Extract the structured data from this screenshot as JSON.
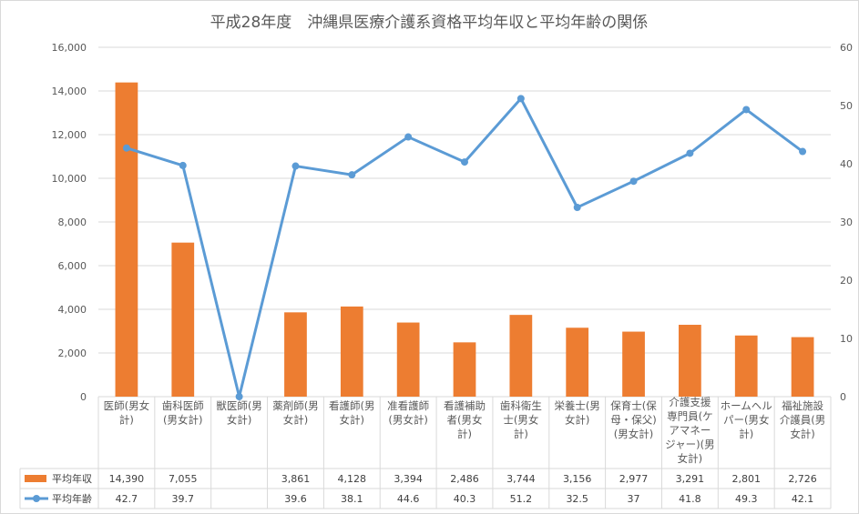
{
  "chart_data": {
    "type": "bar+line",
    "title": "平成28年度　沖縄県医療介護系資格平均年収と平均年齢の関係",
    "categories": [
      "医師(男女計)",
      "歯科医師(男女計)",
      "獣医師(男女計)",
      "薬剤師(男女計)",
      "看護師(男女計)",
      "准看護師(男女計)",
      "看護補助者(男女計)",
      "歯科衛生士(男女計)",
      "栄養士(男女計)",
      "保育士(保母・保父)(男女計)",
      "介護支援専門員(ケアマネージャー)(男女計)",
      "ホームヘルパー(男女計)",
      "福祉施設介護員(男女計)"
    ],
    "category_lines": [
      [
        "医師(男女",
        "計)"
      ],
      [
        "歯科医師",
        "(男女計)"
      ],
      [
        "獣医師(男",
        "女計)"
      ],
      [
        "薬剤師(男",
        "女計)"
      ],
      [
        "看護師(男",
        "女計)"
      ],
      [
        "准看護師",
        "(男女計)"
      ],
      [
        "看護補助",
        "者(男女",
        "計)"
      ],
      [
        "歯科衛生",
        "士(男女",
        "計)"
      ],
      [
        "栄養士(男",
        "女計)"
      ],
      [
        "保育士(保",
        "母・保父)",
        "(男女計)"
      ],
      [
        "介護支援",
        "専門員(ケ",
        "アマネー",
        "ジャー)(男",
        "女計)"
      ],
      [
        "ホームヘル",
        "パー(男女",
        "計)"
      ],
      [
        "福祉施設",
        "介護員(男",
        "女計)"
      ]
    ],
    "series": [
      {
        "name": "平均年収",
        "kind": "bar",
        "axis": "left",
        "color": "#ed7d31",
        "values": [
          14390,
          7055,
          null,
          3861,
          4128,
          3394,
          2486,
          3744,
          3156,
          2977,
          3291,
          2801,
          2726
        ],
        "labels": [
          "14,390",
          "7,055",
          "",
          "3,861",
          "4,128",
          "3,394",
          "2,486",
          "3,744",
          "3,156",
          "2,977",
          "3,291",
          "2,801",
          "2,726"
        ]
      },
      {
        "name": "平均年齢",
        "kind": "line",
        "axis": "right",
        "color": "#5b9bd5",
        "values": [
          42.7,
          39.7,
          0,
          39.6,
          38.1,
          44.6,
          40.3,
          51.2,
          32.5,
          37,
          41.8,
          49.3,
          42.1
        ],
        "labels": [
          "42.7",
          "39.7",
          "",
          "39.6",
          "38.1",
          "44.6",
          "40.3",
          "51.2",
          "32.5",
          "37",
          "41.8",
          "49.3",
          "42.1"
        ]
      }
    ],
    "y_left": {
      "min": 0,
      "max": 16000,
      "step": 2000,
      "ticks": [
        "0",
        "2,000",
        "4,000",
        "6,000",
        "8,000",
        "10,000",
        "12,000",
        "14,000",
        "16,000"
      ]
    },
    "y_right": {
      "min": 0,
      "max": 60,
      "step": 10,
      "ticks": [
        "0",
        "10",
        "20",
        "30",
        "40",
        "50",
        "60"
      ]
    },
    "grid": true,
    "data_table": true,
    "colors": {
      "bar": "#ed7d31",
      "line": "#5b9bd5",
      "grid": "#d9d9d9",
      "text": "#595959"
    }
  }
}
